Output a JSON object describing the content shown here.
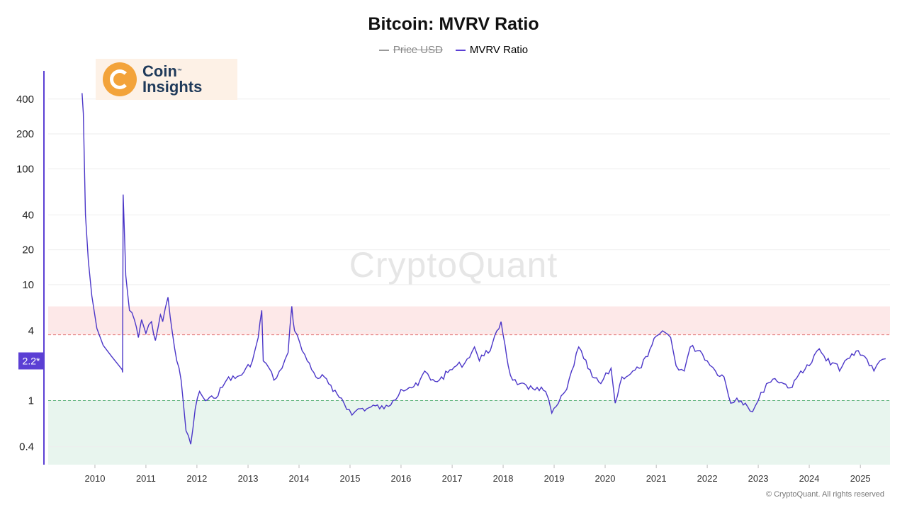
{
  "title": "Bitcoin: MVRV Ratio",
  "legend": [
    {
      "label": "Price USD",
      "color": "#999999",
      "enabled": false
    },
    {
      "label": "MVRV Ratio",
      "color": "#5b3fd4",
      "enabled": true
    }
  ],
  "logo": {
    "line1": "Coin",
    "tm": "™",
    "line2": "Insights"
  },
  "watermark": "CryptoQuant",
  "footer": "© CryptoQuant. All rights reserved",
  "colors": {
    "line": "#4b36c8",
    "axis": "#5b3fd4",
    "upper_band": "#fde8e8",
    "lower_band": "#e8f5ee",
    "upper_line": "#e07575",
    "lower_line": "#5cb37a"
  },
  "chart_data": {
    "type": "line",
    "title": "Bitcoin: MVRV Ratio",
    "xlabel": "",
    "ylabel": "",
    "y_scale": "log",
    "x_ticks": [
      "2010",
      "2011",
      "2012",
      "2013",
      "2014",
      "2015",
      "2016",
      "2017",
      "2018",
      "2019",
      "2020",
      "2021",
      "2022",
      "2023",
      "2024",
      "2025"
    ],
    "y_ticks": [
      0.4,
      1,
      4,
      10,
      20,
      40,
      100,
      200,
      400
    ],
    "xlim": [
      "2009-01-01",
      "2025-08-01"
    ],
    "ylim": [
      0.28,
      700
    ],
    "current_value_label": "2.2*",
    "current_value": 2.2,
    "bands": [
      {
        "from": 3.7,
        "to": 6.5,
        "color": "#fde8e8"
      },
      {
        "from": 0.28,
        "to": 1.0,
        "color": "#e8f5ee"
      }
    ],
    "threshold_lines": [
      3.7,
      1.0
    ],
    "series": [
      {
        "name": "MVRV Ratio",
        "x": [
          "2009-10-01",
          "2009-10-10",
          "2009-10-25",
          "2009-11-15",
          "2009-12-10",
          "2010-01-15",
          "2010-03-01",
          "2010-05-01",
          "2010-07-15",
          "2010-07-18",
          "2010-07-22",
          "2010-08-10",
          "2010-09-05",
          "2010-10-10",
          "2010-11-08",
          "2010-12-01",
          "2011-01-01",
          "2011-02-10",
          "2011-03-10",
          "2011-04-15",
          "2011-05-01",
          "2011-06-08",
          "2011-07-10",
          "2011-08-10",
          "2011-09-10",
          "2011-10-15",
          "2011-11-18",
          "2011-12-20",
          "2012-01-20",
          "2012-03-01",
          "2012-05-01",
          "2012-07-01",
          "2012-08-15",
          "2012-10-01",
          "2012-12-01",
          "2013-02-01",
          "2013-03-15",
          "2013-04-09",
          "2013-04-20",
          "2013-06-01",
          "2013-07-05",
          "2013-09-01",
          "2013-10-15",
          "2013-11-10",
          "2013-11-30",
          "2014-01-05",
          "2014-03-01",
          "2014-05-01",
          "2014-07-01",
          "2014-09-01",
          "2014-11-01",
          "2015-01-15",
          "2015-03-01",
          "2015-05-01",
          "2015-07-01",
          "2015-09-01",
          "2015-11-05",
          "2016-01-01",
          "2016-03-01",
          "2016-05-01",
          "2016-06-18",
          "2016-08-01",
          "2016-10-01",
          "2016-12-01",
          "2017-02-01",
          "2017-04-01",
          "2017-06-10",
          "2017-07-15",
          "2017-09-01",
          "2017-10-01",
          "2017-12-17",
          "2018-01-15",
          "2018-02-06",
          "2018-03-10",
          "2018-05-01",
          "2018-07-01",
          "2018-09-01",
          "2018-11-01",
          "2018-12-15",
          "2019-02-01",
          "2019-04-01",
          "2019-06-26",
          "2019-08-01",
          "2019-10-01",
          "2019-12-01",
          "2020-02-12",
          "2020-03-13",
          "2020-05-01",
          "2020-07-01",
          "2020-09-01",
          "2020-11-01",
          "2021-01-01",
          "2021-02-15",
          "2021-04-14",
          "2021-05-23",
          "2021-07-20",
          "2021-09-01",
          "2021-11-10",
          "2022-01-01",
          "2022-03-01",
          "2022-05-01",
          "2022-06-18",
          "2022-08-01",
          "2022-10-01",
          "2022-11-21",
          "2023-01-01",
          "2023-03-01",
          "2023-05-01",
          "2023-07-01",
          "2023-09-01",
          "2023-11-01",
          "2024-01-01",
          "2024-03-13",
          "2024-05-01",
          "2024-07-01",
          "2024-08-05",
          "2024-10-01",
          "2024-12-17",
          "2025-02-01",
          "2025-04-08",
          "2025-05-20",
          "2025-07-01"
        ],
        "values": [
          450,
          300,
          40,
          16,
          8,
          4.2,
          3.0,
          2.4,
          1.85,
          1.75,
          60,
          12,
          6,
          5,
          3.5,
          5,
          3.8,
          4.8,
          3.3,
          5.5,
          4.8,
          7.8,
          3.8,
          2.2,
          1.5,
          0.55,
          0.42,
          0.85,
          1.2,
          1.0,
          1.05,
          1.3,
          1.6,
          1.55,
          1.75,
          2.2,
          3.5,
          6.0,
          2.2,
          1.9,
          1.5,
          1.9,
          2.6,
          6.5,
          4.0,
          3.2,
          2.2,
          1.6,
          1.6,
          1.2,
          1.05,
          0.75,
          0.85,
          0.85,
          0.9,
          0.85,
          1.0,
          1.25,
          1.3,
          1.35,
          1.8,
          1.5,
          1.5,
          1.75,
          2.0,
          2.1,
          2.9,
          2.2,
          2.7,
          2.7,
          4.8,
          3.0,
          2.0,
          1.5,
          1.4,
          1.25,
          1.3,
          1.2,
          0.78,
          0.95,
          1.25,
          2.9,
          2.3,
          1.6,
          1.4,
          1.9,
          0.95,
          1.6,
          1.7,
          1.9,
          2.4,
          3.6,
          4.0,
          3.5,
          2.0,
          1.8,
          2.9,
          2.7,
          2.2,
          1.8,
          1.6,
          0.95,
          1.05,
          0.95,
          0.8,
          1.0,
          1.4,
          1.55,
          1.4,
          1.3,
          1.8,
          2.0,
          2.8,
          2.2,
          2.1,
          1.8,
          2.3,
          2.7,
          2.4,
          1.8,
          2.2,
          2.3
        ]
      }
    ]
  }
}
